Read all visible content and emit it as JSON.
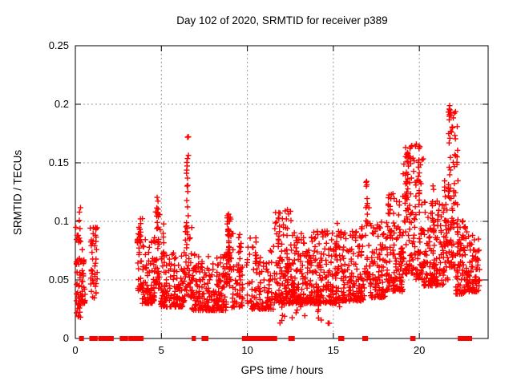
{
  "figure": {
    "title": "Day 102 of 2020, SRMTID for receiver p389",
    "xlabel": "GPS time / hours",
    "ylabel": "SRMTID / TECUs"
  },
  "chart_data": {
    "type": "scatter",
    "title": "Day 102 of 2020, SRMTID for receiver p389",
    "xlabel": "GPS time / hours",
    "ylabel": "SRMTID / TECUs",
    "xlim": [
      0,
      24
    ],
    "ylim": [
      0,
      0.25
    ],
    "xticks": [
      0,
      5,
      10,
      15,
      20
    ],
    "xtick_labels": [
      "0",
      "5",
      "10",
      "15",
      "20"
    ],
    "yticks": [
      0,
      0.05,
      0.1,
      0.15,
      0.2,
      0.25
    ],
    "ytick_labels": [
      "0",
      "0.05",
      "0.1",
      "0.15",
      "0.2",
      "0.25"
    ],
    "grid": {
      "show": true,
      "style": "dashed",
      "color": "#999999"
    },
    "legend": "none",
    "marker": {
      "shape": "plus",
      "color": "#ff0000",
      "size": 7
    },
    "series_name": "SRMTID",
    "max_point": {
      "t": 21.7,
      "y": 0.203
    },
    "bands": [
      {
        "t0": 0.03,
        "t1": 0.38,
        "n": 46,
        "ymin": 0.028,
        "ymax": 0.112,
        "bias": 1.6
      },
      {
        "t0": 0.05,
        "t1": 0.3,
        "n": 8,
        "ymin": 0.015,
        "ymax": 0.03,
        "bias": 1.0
      },
      {
        "t0": 0.38,
        "t1": 0.62,
        "n": 22,
        "ymin": 0.03,
        "ymax": 0.082,
        "bias": 1.8
      },
      {
        "t0": 0.85,
        "t1": 1.28,
        "n": 42,
        "ymin": 0.034,
        "ymax": 0.096,
        "bias": 1.5
      },
      {
        "t0": 3.6,
        "t1": 3.92,
        "n": 30,
        "ymin": 0.04,
        "ymax": 0.105,
        "bias": 1.4
      },
      {
        "t0": 3.9,
        "t1": 4.65,
        "n": 90,
        "ymin": 0.03,
        "ymax": 0.088,
        "bias": 2.0
      },
      {
        "t0": 4.6,
        "t1": 4.95,
        "n": 32,
        "ymin": 0.04,
        "ymax": 0.112,
        "bias": 1.6
      },
      {
        "t0": 4.95,
        "t1": 6.35,
        "n": 140,
        "ymin": 0.027,
        "ymax": 0.075,
        "bias": 1.9
      },
      {
        "t0": 6.35,
        "t1": 6.8,
        "n": 40,
        "ymin": 0.035,
        "ymax": 0.1,
        "bias": 1.7
      },
      {
        "t0": 6.8,
        "t1": 8.8,
        "n": 210,
        "ymin": 0.024,
        "ymax": 0.072,
        "bias": 1.9
      },
      {
        "t0": 8.8,
        "t1": 9.1,
        "n": 40,
        "ymin": 0.045,
        "ymax": 0.105,
        "bias": 1.3
      },
      {
        "t0": 9.1,
        "t1": 9.75,
        "n": 48,
        "ymin": 0.026,
        "ymax": 0.09,
        "bias": 2.0
      },
      {
        "t0": 9.95,
        "t1": 10.25,
        "n": 14,
        "ymin": 0.03,
        "ymax": 0.09,
        "bias": 1.6
      },
      {
        "t0": 10.25,
        "t1": 11.55,
        "n": 100,
        "ymin": 0.025,
        "ymax": 0.085,
        "bias": 2.0
      },
      {
        "t0": 11.55,
        "t1": 12.55,
        "n": 120,
        "ymin": 0.03,
        "ymax": 0.11,
        "bias": 2.1
      },
      {
        "t0": 11.6,
        "t1": 15.4,
        "n": 26,
        "ymin": 0.012,
        "ymax": 0.034,
        "bias": 1.0
      },
      {
        "t0": 12.55,
        "t1": 15.45,
        "n": 330,
        "ymin": 0.03,
        "ymax": 0.092,
        "bias": 1.9
      },
      {
        "t0": 15.45,
        "t1": 16.8,
        "n": 140,
        "ymin": 0.032,
        "ymax": 0.096,
        "bias": 1.9
      },
      {
        "t0": 16.8,
        "t1": 17.15,
        "n": 26,
        "ymin": 0.05,
        "ymax": 0.12,
        "bias": 1.5
      },
      {
        "t0": 17.15,
        "t1": 18.15,
        "n": 110,
        "ymin": 0.035,
        "ymax": 0.1,
        "bias": 1.8
      },
      {
        "t0": 18.15,
        "t1": 19.05,
        "n": 105,
        "ymin": 0.04,
        "ymax": 0.125,
        "bias": 1.7
      },
      {
        "t0": 19.05,
        "t1": 19.65,
        "n": 75,
        "ymin": 0.055,
        "ymax": 0.165,
        "bias": 1.6
      },
      {
        "t0": 19.65,
        "t1": 20.25,
        "n": 65,
        "ymin": 0.05,
        "ymax": 0.168,
        "bias": 1.6
      },
      {
        "t0": 20.25,
        "t1": 21.4,
        "n": 130,
        "ymin": 0.045,
        "ymax": 0.12,
        "bias": 1.7
      },
      {
        "t0": 21.4,
        "t1": 21.68,
        "n": 36,
        "ymin": 0.05,
        "ymax": 0.14,
        "bias": 1.4
      },
      {
        "t0": 21.68,
        "t1": 22.1,
        "n": 65,
        "ymin": 0.06,
        "ymax": 0.2,
        "bias": 1.5
      },
      {
        "t0": 22.1,
        "t1": 22.68,
        "n": 75,
        "ymin": 0.038,
        "ymax": 0.105,
        "bias": 1.7
      },
      {
        "t0": 22.68,
        "t1": 23.5,
        "n": 85,
        "ymin": 0.04,
        "ymax": 0.092,
        "bias": 1.7
      }
    ],
    "spikes": [
      {
        "t": 3.77,
        "dt": 0.05,
        "n": 8,
        "ymin": 0.06,
        "ymax": 0.104
      },
      {
        "t": 4.78,
        "dt": 0.05,
        "n": 9,
        "ymin": 0.085,
        "ymax": 0.123
      },
      {
        "t": 5.1,
        "dt": 0.05,
        "n": 6,
        "ymin": 0.06,
        "ymax": 0.1
      },
      {
        "t": 6.52,
        "dt": 0.06,
        "n": 20,
        "ymin": 0.08,
        "ymax": 0.179
      },
      {
        "t": 8.92,
        "dt": 0.05,
        "n": 13,
        "ymin": 0.065,
        "ymax": 0.109
      },
      {
        "t": 9.55,
        "dt": 0.04,
        "n": 7,
        "ymin": 0.05,
        "ymax": 0.094
      },
      {
        "t": 10.5,
        "dt": 0.05,
        "n": 7,
        "ymin": 0.045,
        "ymax": 0.09
      },
      {
        "t": 12.3,
        "dt": 0.05,
        "n": 7,
        "ymin": 0.055,
        "ymax": 0.096
      },
      {
        "t": 15.2,
        "dt": 0.05,
        "n": 7,
        "ymin": 0.055,
        "ymax": 0.108
      },
      {
        "t": 16.95,
        "dt": 0.05,
        "n": 9,
        "ymin": 0.09,
        "ymax": 0.137
      },
      {
        "t": 18.35,
        "dt": 0.05,
        "n": 9,
        "ymin": 0.08,
        "ymax": 0.123
      },
      {
        "t": 19.3,
        "dt": 0.06,
        "n": 13,
        "ymin": 0.1,
        "ymax": 0.164
      },
      {
        "t": 19.98,
        "dt": 0.05,
        "n": 12,
        "ymin": 0.1,
        "ymax": 0.167
      },
      {
        "t": 20.8,
        "dt": 0.05,
        "n": 9,
        "ymin": 0.07,
        "ymax": 0.135
      },
      {
        "t": 21.75,
        "dt": 0.07,
        "n": 18,
        "ymin": 0.12,
        "ymax": 0.203
      },
      {
        "t": 22.2,
        "dt": 0.05,
        "n": 10,
        "ymin": 0.09,
        "ymax": 0.19
      }
    ],
    "zero_segments": [
      [
        0.33,
        0.38
      ],
      [
        0.93,
        1.02
      ],
      [
        1.08,
        1.18
      ],
      [
        1.45,
        1.62
      ],
      [
        1.68,
        1.88
      ],
      [
        1.95,
        2.12
      ],
      [
        2.7,
        2.78
      ],
      [
        2.85,
        2.95
      ],
      [
        3.2,
        3.48
      ],
      [
        3.55,
        3.85
      ],
      [
        6.88,
        6.9
      ],
      [
        7.45,
        7.5
      ],
      [
        7.6,
        7.62
      ],
      [
        9.8,
        10.05
      ],
      [
        10.25,
        10.45
      ],
      [
        10.55,
        10.78
      ],
      [
        10.9,
        11.1
      ],
      [
        11.18,
        11.38
      ],
      [
        11.45,
        11.62
      ],
      [
        12.5,
        12.52
      ],
      [
        12.62,
        12.64
      ],
      [
        15.4,
        15.42
      ],
      [
        15.5,
        15.52
      ],
      [
        16.8,
        16.9
      ],
      [
        19.58,
        19.66
      ],
      [
        22.35,
        22.6
      ],
      [
        22.7,
        22.95
      ]
    ]
  }
}
